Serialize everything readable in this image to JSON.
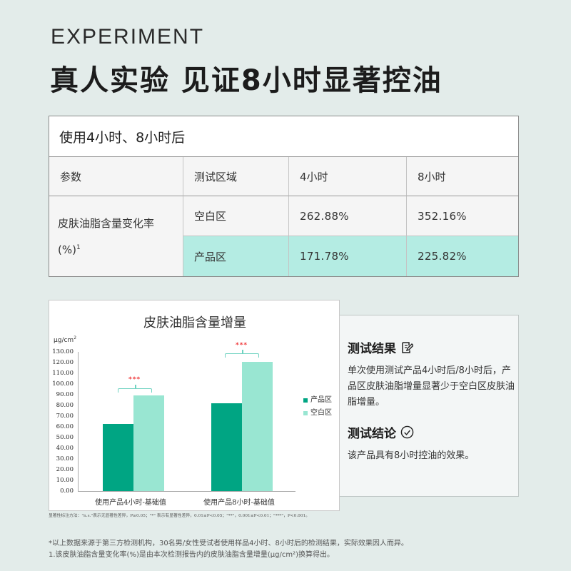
{
  "header": {
    "eyebrow": "EXPERIMENT",
    "headline": "真人实验 见证8小时显著控油"
  },
  "table": {
    "caption": "使用4小时、8小时后",
    "columns": [
      "参数",
      "测试区域",
      "4小时",
      "8小时"
    ],
    "param_label": "皮肤油脂含量变化率",
    "param_unit": "(%)",
    "param_sup": "1",
    "rows": [
      {
        "zone": "空白区",
        "h4": "262.88%",
        "h8": "352.16%",
        "highlight": false
      },
      {
        "zone": "产品区",
        "h4": "171.78%",
        "h8": "225.82%",
        "highlight": true
      }
    ]
  },
  "chart_data": {
    "type": "bar",
    "title": "皮肤油脂含量增量",
    "ylabel": "µg/cm²",
    "xlabel": "",
    "categories": [
      "使用产品4小时-基础值",
      "使用产品8小时-基础值"
    ],
    "series": [
      {
        "name": "产品区",
        "color": "#00a583",
        "values": [
          62.7,
          82.0
        ]
      },
      {
        "name": "空白区",
        "color": "#99e6d2",
        "values": [
          89.3,
          120.7
        ]
      }
    ],
    "ylim": [
      0,
      130
    ],
    "yticks": [
      "130.00",
      "120.00",
      "110.00",
      "100.00",
      "90.00",
      "80.00",
      "70.00",
      "60.00",
      "50.00",
      "40.00",
      "30.00",
      "20.00",
      "10.00",
      "0.00"
    ],
    "annotations": [
      "***",
      "***"
    ],
    "legend_position": "right",
    "grid": false
  },
  "chart_footnote": "显著性标注方法：\"n.s.\"表示无显著性差异，P≥0.05；\"*\" 表示有显著性差异，0.01≤P<0.05；\"**\"，0.001≤P<0.01；\"***\"，P<0.001。",
  "result": {
    "result_title": "测试结果",
    "result_icon": "edit-icon",
    "result_text": "单次使用测试产品4小时后/8小时后，产品区皮肤油脂增量显著少于空白区皮肤油脂增量。",
    "conclusion_title": "测试结论",
    "conclusion_icon": "check-circle-icon",
    "conclusion_text": "该产品具有8小时控油的效果。"
  },
  "footnotes": {
    "line1": "*以上数据来源于第三方检测机构，30名男/女性受试者使用样品4小时、8小时后的检测结果，实际效果因人而异。",
    "line2": "1.该皮肤油脂含量变化率(%)是由本次检测报告内的皮肤油脂含量增量(µg/cm²)换算得出。"
  }
}
